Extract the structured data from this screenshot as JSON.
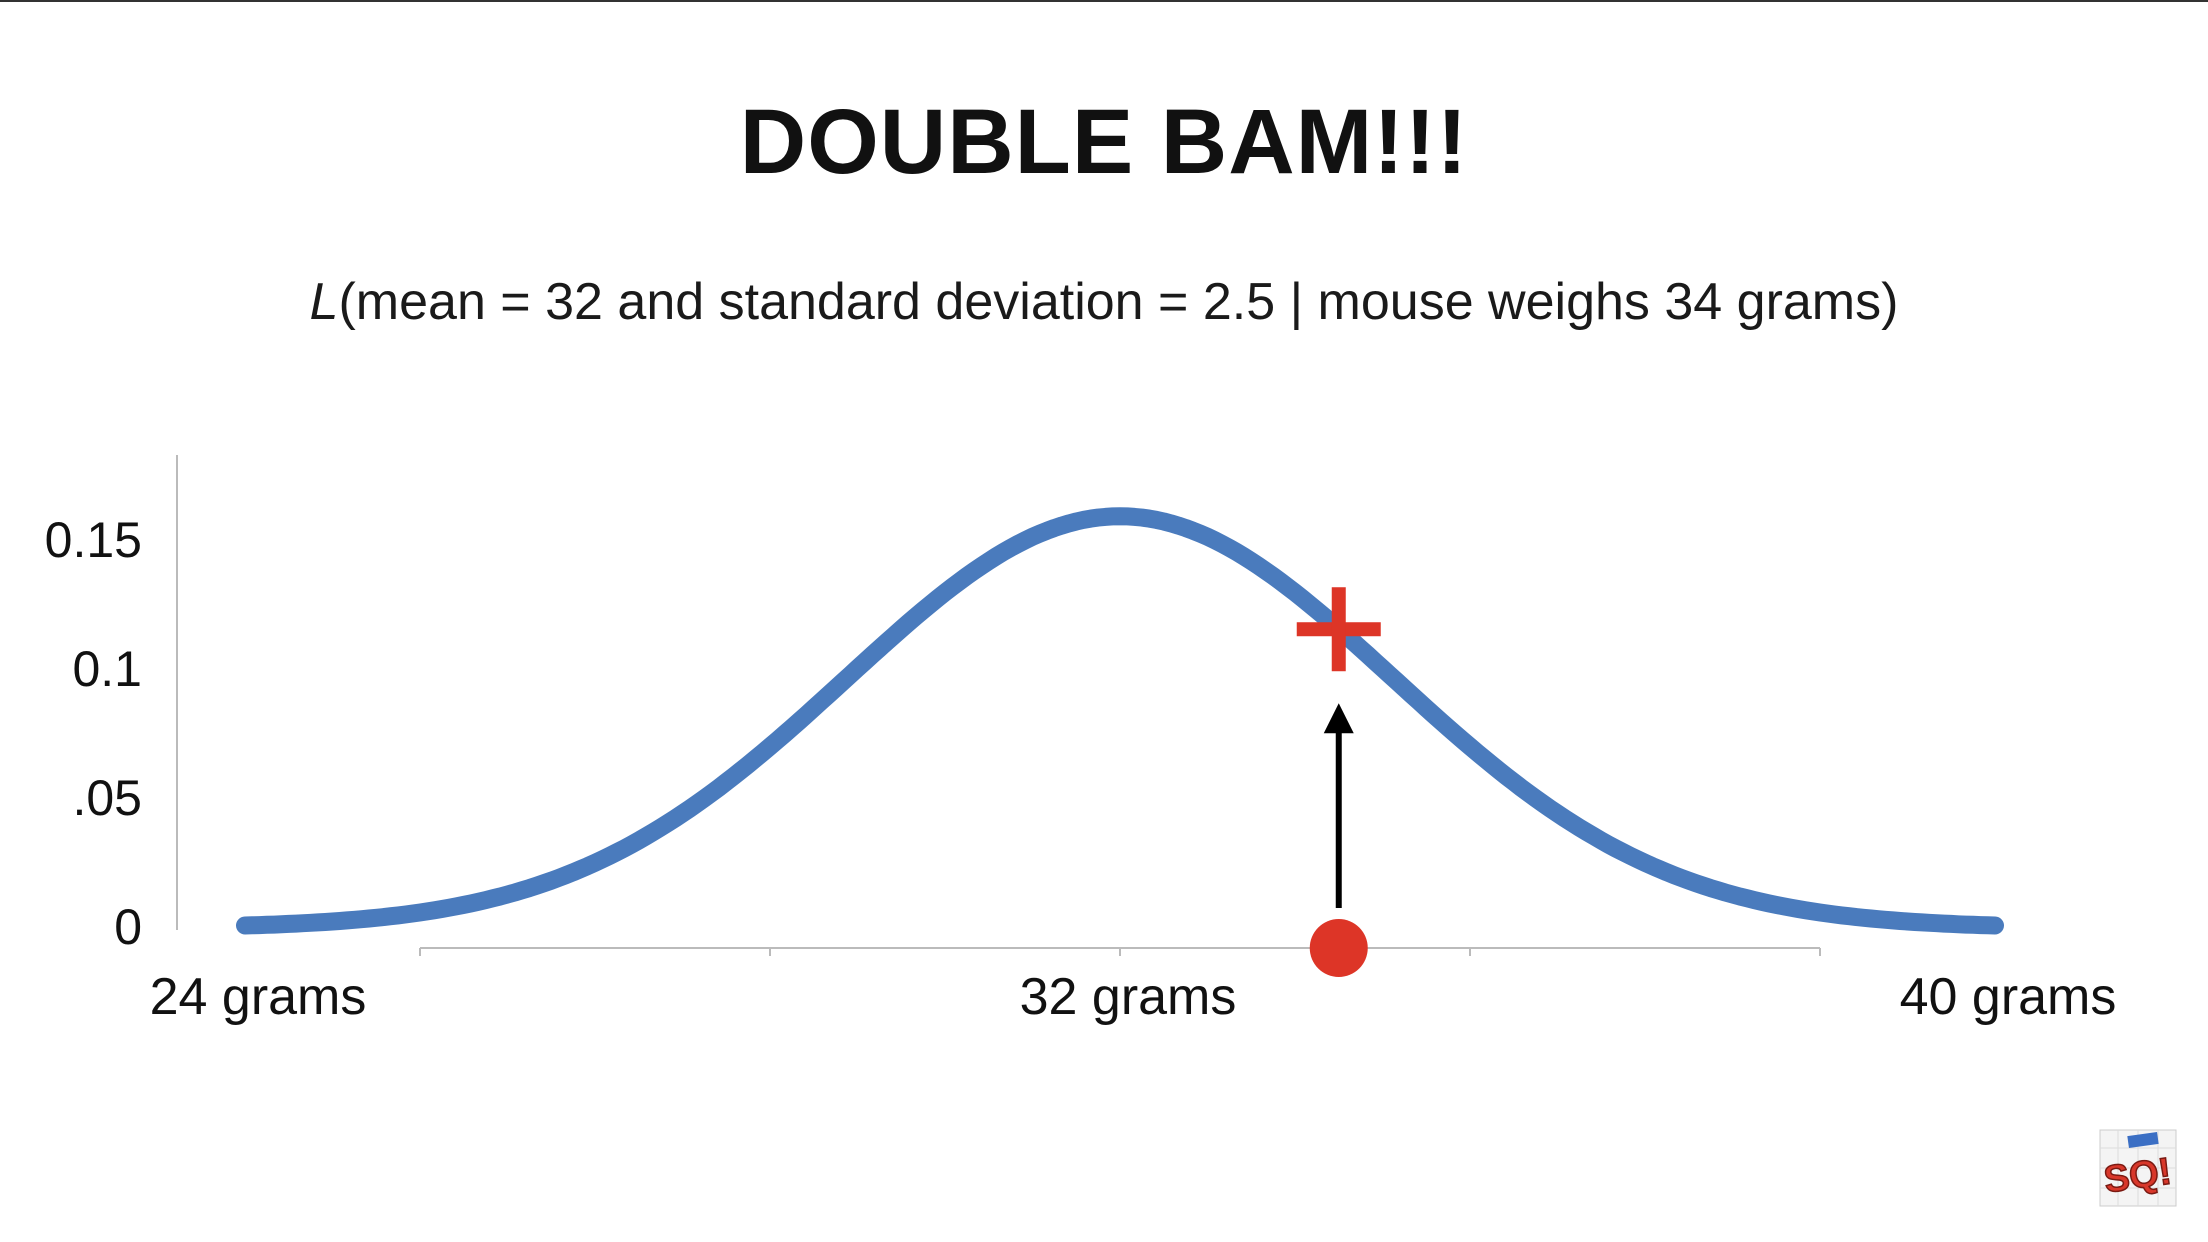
{
  "title": "DOUBLE BAM!!!",
  "subtitle": {
    "symbol": "L",
    "text": "(mean = 32 and standard deviation = 2.5 | mouse weighs 34 grams)"
  },
  "logo": {
    "text": "SQ!",
    "icon": "statquest-logo-icon"
  },
  "colors": {
    "curve": "#4a7bbd",
    "marker": "#dd3527",
    "arrow": "#000000",
    "axis": "#bbbbbb",
    "text": "#111111"
  },
  "chart_data": {
    "type": "line",
    "distribution": "normal",
    "mean": 32,
    "sd": 2.5,
    "xlim": [
      24,
      40
    ],
    "ylim": [
      0,
      0.16
    ],
    "x_ticks": [
      {
        "value": 24,
        "label": "24 grams"
      },
      {
        "value": 32,
        "label": "32 grams"
      },
      {
        "value": 40,
        "label": "40 grams"
      }
    ],
    "y_ticks": [
      {
        "value": 0,
        "label": "0"
      },
      {
        "value": 0.05,
        "label": ".05"
      },
      {
        "value": 0.1,
        "label": "0.1"
      },
      {
        "value": 0.15,
        "label": "0.15"
      }
    ],
    "x_minor_ticks": [
      26,
      28,
      30,
      32,
      34,
      36,
      38
    ],
    "observation": {
      "x": 34,
      "y": 0.1158
    }
  }
}
